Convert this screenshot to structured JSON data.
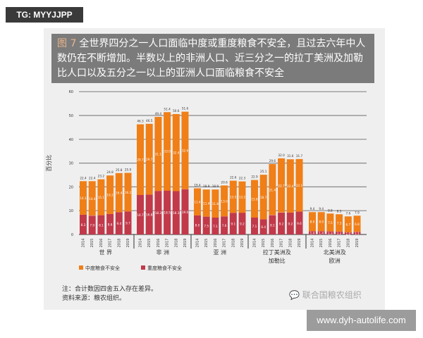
{
  "watermark_top": "TG: MYYJJPP",
  "watermark_site": "www.dyh-autolife.com",
  "wechat_source": "联合国粮农组织",
  "title": {
    "fig": "图 7",
    "text": "全世界四分之一人口面临中度或重度粮食不安全，且过去六年中人数仍在不断增加。半数以上的非洲人口、近三分之一的拉丁美洲及加勒比人口以及五分之一以上的亚洲人口面临粮食不安全"
  },
  "notes": [
    "注：合计数因四舍五入存在差异。",
    "资料来源：粮农组织。"
  ],
  "chart_data": {
    "type": "bar",
    "stacked": true,
    "ylabel": "百分比",
    "ylim": [
      0,
      60
    ],
    "yticks": [
      0,
      10,
      20,
      30,
      40,
      50,
      60
    ],
    "grid": true,
    "legend_position": "bottom-left",
    "years": [
      "2014",
      "2015",
      "2016",
      "2017",
      "2018",
      "2019"
    ],
    "colors": {
      "moderate": "#f07f17",
      "severe": "#c2394a"
    },
    "legend": [
      {
        "key": "moderate",
        "label": "中度粮食不安全"
      },
      {
        "key": "severe",
        "label": "重度粮食不安全"
      }
    ],
    "groups": [
      {
        "label": [
          "世 界"
        ],
        "totals": [
          22.4,
          22.4,
          23.2,
          24.8,
          25.8,
          25.9
        ],
        "moderate": [
          14.1,
          14.4,
          15.1,
          16.2,
          16.4,
          16.2
        ],
        "severe": [
          8.3,
          7.9,
          8.1,
          8.6,
          9.4,
          9.7
        ]
      },
      {
        "label": [
          "非 洲"
        ],
        "totals": [
          46.3,
          46.5,
          49.4,
          51.4,
          50.6,
          51.6
        ],
        "moderate": [
          29.7,
          29.7,
          31.1,
          33.0,
          32.4,
          32.6
        ],
        "severe": [
          16.7,
          16.8,
          18.3,
          18.5,
          18.3,
          19.0
        ]
      },
      {
        "label": [
          "亚 洲"
        ],
        "totals": [
          19.4,
          18.9,
          18.9,
          20.6,
          22.6,
          22.3
        ],
        "moderate": [
          11.4,
          11.4,
          11.8,
          13.0,
          13.5,
          13.2
        ],
        "severe": [
          8.0,
          7.5,
          7.1,
          7.6,
          9.1,
          9.2
        ]
      },
      {
        "label": [
          "拉丁美洲及",
          "加勒比"
        ],
        "totals": [
          22.9,
          25.1,
          29.6,
          32.0,
          31.6,
          31.7
        ],
        "moderate": [
          15.8,
          18.7,
          21.4,
          22.7,
          22.4,
          22.1
        ],
        "severe": [
          7.1,
          6.4,
          8.1,
          9.2,
          9.2,
          9.6
        ]
      },
      {
        "label": [
          "北美洲及",
          "欧洲"
        ],
        "totals": [
          9.4,
          9.4,
          8.8,
          8.5,
          7.6,
          7.9
        ],
        "moderate": [
          8.0,
          8.0,
          7.5,
          7.3,
          6.7,
          6.8
        ],
        "severe": [
          1.4,
          1.4,
          1.3,
          1.2,
          1.0,
          1.1
        ]
      }
    ]
  }
}
